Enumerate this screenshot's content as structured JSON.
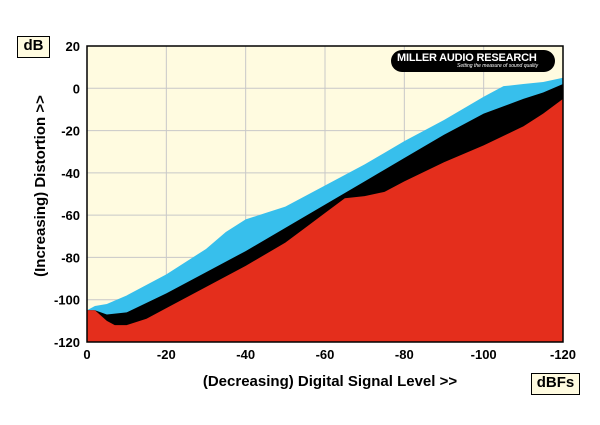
{
  "chart_data": {
    "type": "area",
    "title": "",
    "xlabel": "(Decreasing) Digital Signal Level >>",
    "ylabel": "(Increasing) Distortion >>",
    "x_unit": "dBFs",
    "y_unit": "dB",
    "xlim": [
      0,
      -120
    ],
    "ylim": [
      -120,
      20
    ],
    "x_ticks": [
      0,
      -20,
      -40,
      -60,
      -80,
      -100,
      -120
    ],
    "y_ticks": [
      20,
      0,
      -20,
      -40,
      -60,
      -80,
      -100,
      -120
    ],
    "x_tick_labels": [
      "0",
      "-20",
      "-40",
      "-60",
      "-80",
      "-100",
      "-120"
    ],
    "y_tick_labels": [
      "20",
      "0",
      "-20",
      "-40",
      "-60",
      "-80",
      "-100",
      "-120"
    ],
    "grid": true,
    "series": [
      {
        "color": "#37bfec",
        "x": [
          0,
          -2,
          -5,
          -10,
          -20,
          -30,
          -35,
          -40,
          -45,
          -50,
          -60,
          -70,
          -80,
          -90,
          -100,
          -105,
          -110,
          -115,
          -120
        ],
        "values": [
          -105,
          -103,
          -102,
          -98,
          -88,
          -76,
          -68,
          -62,
          -59,
          -56,
          -46,
          -36,
          -25,
          -15,
          -4,
          1,
          2,
          3,
          5
        ]
      },
      {
        "color": "#000000",
        "x": [
          0,
          -2,
          -5,
          -10,
          -20,
          -30,
          -40,
          -50,
          -60,
          -70,
          -80,
          -90,
          -100,
          -110,
          -115,
          -120
        ],
        "values": [
          -105,
          -105,
          -107,
          -106,
          -97,
          -87,
          -77,
          -66,
          -55,
          -44,
          -33,
          -22,
          -12,
          -5,
          -2,
          2
        ]
      },
      {
        "color": "#e42e1c",
        "x": [
          0,
          -2,
          -5,
          -7,
          -10,
          -15,
          -20,
          -30,
          -40,
          -50,
          -55,
          -60,
          -65,
          -70,
          -75,
          -80,
          -90,
          -100,
          -110,
          -115,
          -120
        ],
        "values": [
          -105,
          -105,
          -110,
          -112,
          -112,
          -109,
          -104,
          -94,
          -84,
          -73,
          -66,
          -59,
          -52,
          -51,
          -49,
          -44,
          -35,
          -27,
          -18,
          -12,
          -5
        ]
      }
    ]
  },
  "logo": {
    "brand": "MILLER AUDIO RESEARCH",
    "tagline": "Setting the measure of sound quality"
  },
  "colors": {
    "plot_background": "#fffbe0",
    "grid": "#c8c8c8"
  }
}
